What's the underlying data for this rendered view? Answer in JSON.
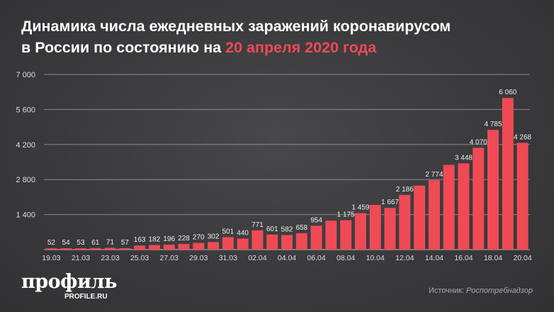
{
  "header": {
    "title_line1": "Динамика числа ежедневных заражений коронавирусом",
    "title_line2_prefix": "в России по состоянию на ",
    "title_line2_highlight": "20 апреля 2020 года"
  },
  "footer": {
    "logo": "профиль",
    "logo_sub": "PROFILE.RU",
    "source_label": "Источник: ",
    "source_value": "Роспотребнадзор"
  },
  "colors": {
    "bar": "#ef4a55",
    "highlight": "#ef4a55",
    "background": "#3a3a3d"
  },
  "chart_data": {
    "type": "bar",
    "title": "Динамика числа ежедневных заражений коронавирусом в России по состоянию на 20 апреля 2020 года",
    "categories": [
      "19.03",
      "20.03",
      "21.03",
      "22.03",
      "23.03",
      "24.03",
      "25.03",
      "26.03",
      "27.03",
      "28.03",
      "29.03",
      "30.03",
      "31.03",
      "01.04",
      "02.04",
      "03.04",
      "04.04",
      "05.04",
      "06.04",
      "07.04",
      "08.04",
      "09.04",
      "10.04",
      "11.04",
      "12.04",
      "13.04",
      "14.04",
      "15.04",
      "16.04",
      "17.04",
      "18.04",
      "19.04",
      "20.04"
    ],
    "values": [
      52,
      54,
      53,
      61,
      71,
      57,
      163,
      182,
      196,
      228,
      270,
      302,
      501,
      440,
      771,
      601,
      582,
      658,
      954,
      1154,
      1175,
      1459,
      1786,
      1667,
      2186,
      2558,
      2774,
      3388,
      3448,
      4070,
      4785,
      6060,
      4268
    ],
    "data_labels": [
      "52",
      "54",
      "53",
      "61",
      "71",
      "57",
      "163",
      "182",
      "196",
      "228",
      "270",
      "302",
      "501",
      "440",
      "771",
      "601",
      "582",
      "658",
      "954",
      "",
      "1 175",
      "1 459",
      "",
      "1 667",
      "2 186",
      "",
      "2 774",
      "",
      "3 448",
      "4 070",
      "4 785",
      "6 060",
      "4 268"
    ],
    "x_tick_labels": [
      "19.03",
      "",
      "21.03",
      "",
      "23.03",
      "",
      "25.03",
      "",
      "27.03",
      "",
      "29.03",
      "",
      "31.03",
      "",
      "02.04",
      "",
      "04.04",
      "",
      "06.04",
      "",
      "08.04",
      "",
      "10.04",
      "",
      "12.04",
      "",
      "14.04",
      "",
      "16.04",
      "",
      "18.04",
      "",
      "20.04"
    ],
    "y_ticks": [
      1400,
      2800,
      4200,
      5600,
      7000
    ],
    "y_tick_labels": [
      "1 400",
      "2 800",
      "4 200",
      "5 600",
      "7 000"
    ],
    "ylim": [
      0,
      7000
    ],
    "xlabel": "",
    "ylabel": "",
    "grid": true,
    "legend": "none"
  }
}
